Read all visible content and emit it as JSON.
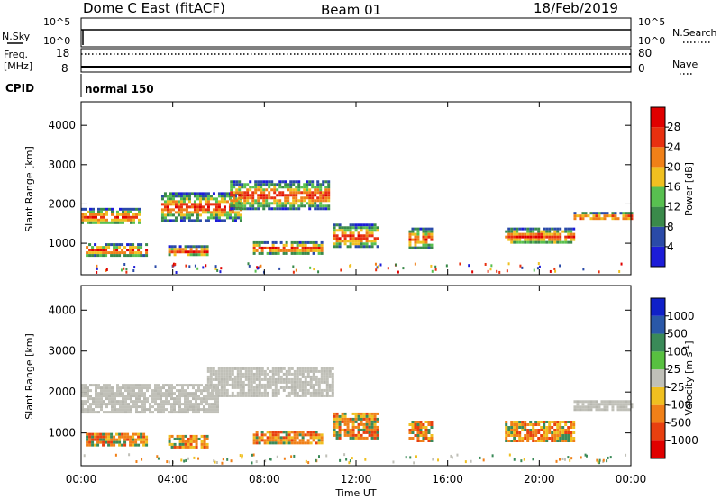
{
  "header": {
    "title": "Dome C East (fitACF)",
    "beam": "Beam 01",
    "date": "18/Feb/2019"
  },
  "noise_panel": {
    "left_label": "N.Sky",
    "right_label": "N.Search",
    "left_ticks": [
      "10^5",
      "10^0"
    ],
    "right_ticks": [
      "10^5",
      "10^0"
    ]
  },
  "freq_panel": {
    "left_label_1": "Freq.",
    "left_label_2": "[MHz]",
    "right_label": "Nave",
    "left_ticks": [
      "18",
      "8"
    ],
    "right_ticks": [
      "80",
      "0"
    ]
  },
  "cpid": {
    "label": "CPID",
    "value": "normal 150"
  },
  "x_axis": {
    "label": "Time UT",
    "ticks": [
      "00:00",
      "04:00",
      "08:00",
      "12:00",
      "16:00",
      "20:00",
      "00:00"
    ]
  },
  "power_colorbar": {
    "label": "Power [dB]",
    "ticks": [
      "4",
      "8",
      "12",
      "16",
      "20",
      "24",
      "28"
    ],
    "colors": [
      "#1c1cd8",
      "#2a4aa8",
      "#3a8a4a",
      "#58c050",
      "#f0c020",
      "#f08018",
      "#e83010",
      "#e00000"
    ]
  },
  "velocity_colorbar": {
    "label_main": "Velocity  [m s",
    "label_exp": "-1",
    "label_close": "]",
    "ticks": [
      "1000",
      "500",
      "100",
      "25",
      "-25",
      "-100",
      "-500",
      "-1000"
    ],
    "colors": [
      "#1020c8",
      "#2a58a8",
      "#3a8a58",
      "#58c040",
      "#c0c0b8",
      "#f0c020",
      "#f08018",
      "#e84010",
      "#e00000"
    ]
  },
  "chart_data": [
    {
      "type": "heatmap",
      "title": "Power",
      "ylabel": "Slant Range [km]",
      "xlabel": "",
      "y_ticks": [
        "1000",
        "2000",
        "3000",
        "4000"
      ],
      "ylim": [
        200,
        4600
      ],
      "xlim_hours": [
        0,
        24
      ],
      "bands": [
        {
          "t0": 0.0,
          "t1": 2.5,
          "r0": 1500,
          "r1": 1900
        },
        {
          "t0": 3.5,
          "t1": 7.0,
          "r0": 1600,
          "r1": 2300
        },
        {
          "t0": 6.5,
          "t1": 10.8,
          "r0": 1900,
          "r1": 2600
        },
        {
          "t0": 0.2,
          "t1": 2.8,
          "r0": 700,
          "r1": 1000
        },
        {
          "t0": 3.8,
          "t1": 5.5,
          "r0": 700,
          "r1": 950
        },
        {
          "t0": 7.5,
          "t1": 10.5,
          "r0": 750,
          "r1": 1050
        },
        {
          "t0": 11.0,
          "t1": 13.0,
          "r0": 900,
          "r1": 1500
        },
        {
          "t0": 14.3,
          "t1": 15.3,
          "r0": 900,
          "r1": 1400
        },
        {
          "t0": 18.5,
          "t1": 21.5,
          "r0": 1000,
          "r1": 1400
        },
        {
          "t0": 21.5,
          "t1": 24.0,
          "r0": 1600,
          "r1": 1800
        }
      ]
    },
    {
      "type": "heatmap",
      "title": "Velocity",
      "ylabel": "Slant Range [km]",
      "xlabel": "Time UT",
      "y_ticks": [
        "1000",
        "2000",
        "3000",
        "4000"
      ],
      "ylim": [
        200,
        4600
      ],
      "xlim_hours": [
        0,
        24
      ],
      "bands": [
        {
          "t0": 0.0,
          "t1": 6.0,
          "r0": 1500,
          "r1": 2200
        },
        {
          "t0": 5.5,
          "t1": 11.0,
          "r0": 1900,
          "r1": 2600
        },
        {
          "t0": 0.2,
          "t1": 2.8,
          "r0": 700,
          "r1": 1000
        },
        {
          "t0": 3.8,
          "t1": 5.5,
          "r0": 650,
          "r1": 950
        },
        {
          "t0": 7.5,
          "t1": 10.5,
          "r0": 750,
          "r1": 1050
        },
        {
          "t0": 11.0,
          "t1": 13.0,
          "r0": 900,
          "r1": 1500
        },
        {
          "t0": 14.3,
          "t1": 15.3,
          "r0": 800,
          "r1": 1300
        },
        {
          "t0": 18.5,
          "t1": 21.5,
          "r0": 800,
          "r1": 1300
        },
        {
          "t0": 21.5,
          "t1": 24.0,
          "r0": 1600,
          "r1": 1800
        }
      ]
    }
  ]
}
